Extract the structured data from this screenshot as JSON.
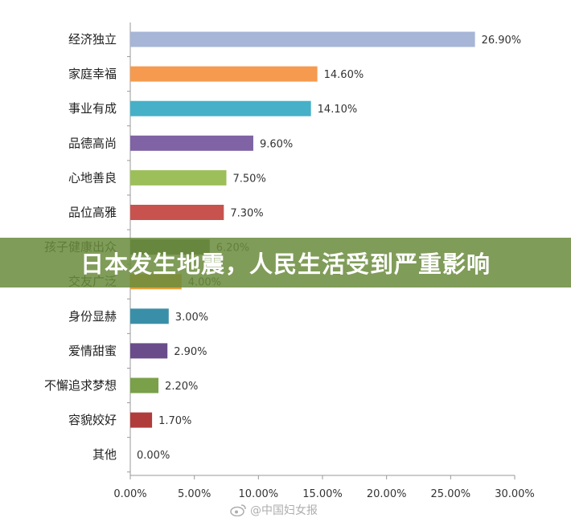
{
  "banner": {
    "title": "日本发生地震，人民生活受到严重影响"
  },
  "watermark": {
    "text": "@中国妇女报",
    "icon": "weibo-icon"
  },
  "chart_data": {
    "type": "bar",
    "orientation": "horizontal",
    "categories": [
      "经济独立",
      "家庭幸福",
      "事业有成",
      "品德高尚",
      "心地善良",
      "品位高雅",
      "孩子健康出众",
      "交友广泛",
      "身份显赫",
      "爱情甜蜜",
      "不懈追求梦想",
      "容貌姣好",
      "其他"
    ],
    "values": [
      26.9,
      14.6,
      14.1,
      9.6,
      7.5,
      7.3,
      6.2,
      4.0,
      3.0,
      2.9,
      2.2,
      1.7,
      0.0
    ],
    "value_labels": [
      "26.90%",
      "14.60%",
      "14.10%",
      "9.60%",
      "7.50%",
      "7.30%",
      "6.20%",
      "4.00%",
      "3.00%",
      "2.90%",
      "2.20%",
      "1.70%",
      "0.00%"
    ],
    "colors": [
      "#a7b5d6",
      "#f59a4f",
      "#45b0c8",
      "#7f63a4",
      "#9dbf5a",
      "#c8524e",
      "#4f6e3f",
      "#e8a03a",
      "#3a8fa8",
      "#6a4c8a",
      "#7aa04a",
      "#b03c3c",
      "#999999"
    ],
    "xlim": [
      0,
      30
    ],
    "x_ticks": [
      "0.00%",
      "5.00%",
      "10.00%",
      "15.00%",
      "20.00%",
      "25.00%",
      "30.00%"
    ],
    "x_tick_values": [
      0,
      5,
      10,
      15,
      20,
      25,
      30
    ],
    "grid": false,
    "title": "",
    "xlabel": "",
    "ylabel": ""
  }
}
